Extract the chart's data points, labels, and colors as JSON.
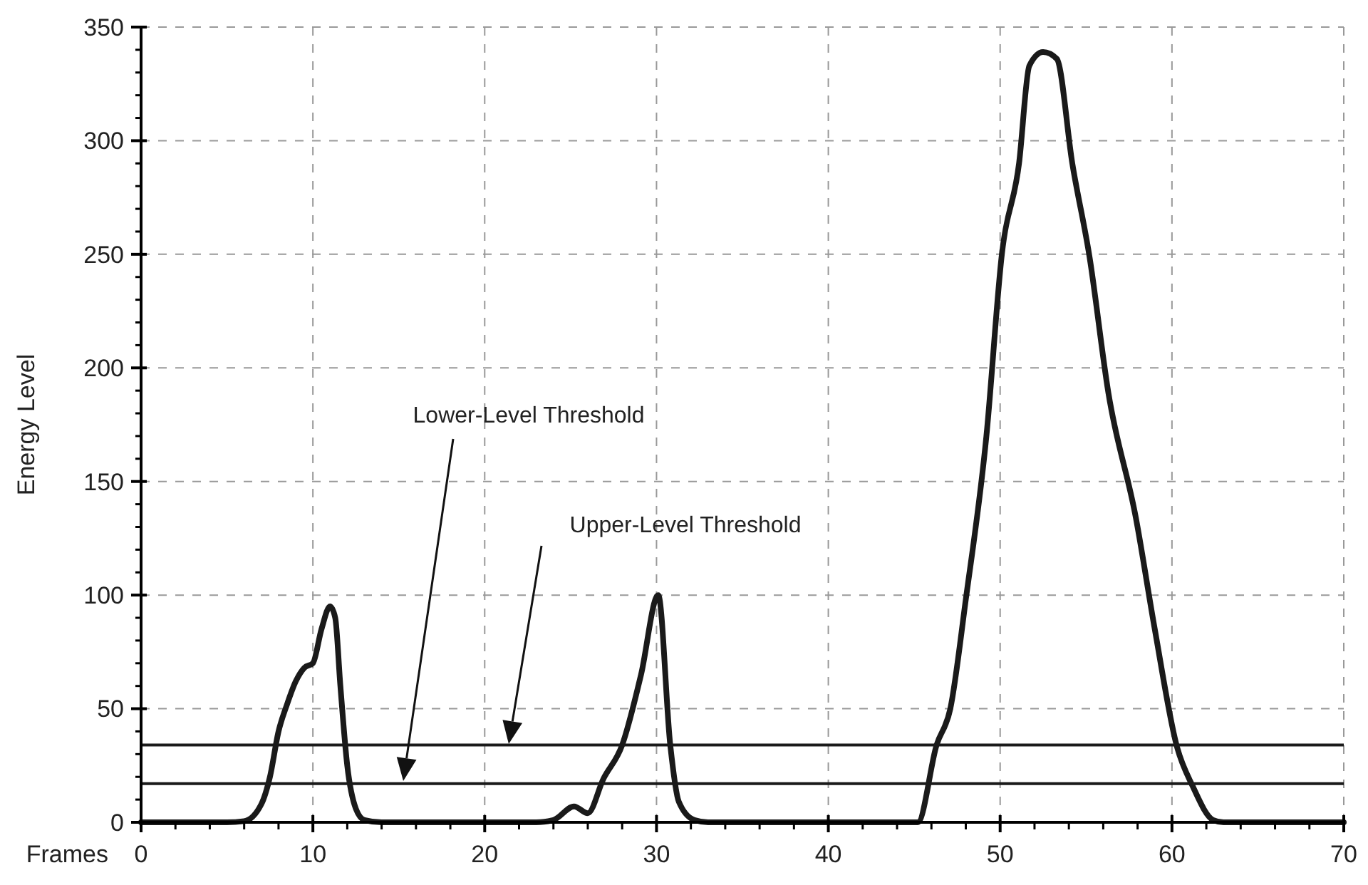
{
  "chart_data": {
    "type": "line",
    "xlabel": "Frames",
    "ylabel": "Energy Level",
    "x": [
      0,
      5,
      6,
      7,
      7.5,
      8,
      8.5,
      9,
      9.5,
      10,
      10.5,
      11,
      11.3,
      11.6,
      12,
      12.5,
      13,
      14,
      23,
      24,
      25.2,
      26,
      26.9,
      28,
      29.1,
      30.1,
      30.8,
      31.3,
      32.2,
      33,
      44,
      45.2,
      46.3,
      47.1,
      48,
      49.2,
      50.1,
      51.1,
      51.7,
      52.5,
      53.3,
      54.2,
      55.2,
      56.3,
      57.9,
      59,
      60.3,
      61.2,
      62.4,
      63,
      70
    ],
    "series": [
      {
        "color": "#1a1a1a",
        "values": [
          0,
          0,
          0.5,
          8,
          20,
          40,
          52,
          62,
          68,
          70,
          85,
          95,
          90,
          60,
          25,
          6,
          1,
          0,
          0,
          1,
          7,
          4,
          19,
          34,
          65,
          100,
          34,
          9,
          1,
          0,
          0,
          0,
          34,
          50,
          98,
          170,
          250,
          290,
          333,
          339,
          336,
          290,
          249,
          189,
          134,
          85,
          33,
          16,
          1,
          0,
          0
        ]
      }
    ],
    "xlim": [
      0,
      70
    ],
    "ylim": [
      0,
      350
    ],
    "xticks": [
      0,
      {
        "value": 2,
        "label": null
      },
      {
        "value": 4,
        "label": null
      },
      {
        "value": 6,
        "label": null
      },
      {
        "value": 8,
        "label": null
      },
      10,
      {
        "value": 12,
        "label": null
      },
      {
        "value": 14,
        "label": null
      },
      {
        "value": 16,
        "label": null
      },
      {
        "value": 18,
        "label": null
      },
      20,
      {
        "value": 22,
        "label": null
      },
      {
        "value": 24,
        "label": null
      },
      {
        "value": 26,
        "label": null
      },
      {
        "value": 28,
        "label": null
      },
      30,
      {
        "value": 32,
        "label": null
      },
      {
        "value": 34,
        "label": null
      },
      {
        "value": 36,
        "label": null
      },
      {
        "value": 38,
        "label": null
      },
      40,
      {
        "value": 42,
        "label": null
      },
      {
        "value": 44,
        "label": null
      },
      {
        "value": 46,
        "label": null
      },
      {
        "value": 48,
        "label": null
      },
      50,
      {
        "value": 52,
        "label": null
      },
      {
        "value": 54,
        "label": null
      },
      {
        "value": 56,
        "label": null
      },
      {
        "value": 58,
        "label": null
      },
      60,
      {
        "value": 62,
        "label": null
      },
      {
        "value": 64,
        "label": null
      },
      {
        "value": 66,
        "label": null
      },
      {
        "value": 68,
        "label": null
      },
      70
    ],
    "yticks": [
      0,
      {
        "value": 10,
        "label": null
      },
      {
        "value": 20,
        "label": null
      },
      {
        "value": 30,
        "label": null
      },
      {
        "value": 40,
        "label": null
      },
      50,
      {
        "value": 60,
        "label": null
      },
      {
        "value": 70,
        "label": null
      },
      {
        "value": 80,
        "label": null
      },
      {
        "value": 90,
        "label": null
      },
      100,
      {
        "value": 110,
        "label": null
      },
      {
        "value": 120,
        "label": null
      },
      {
        "value": 130,
        "label": null
      },
      {
        "value": 140,
        "label": null
      },
      150,
      {
        "value": 160,
        "label": null
      },
      {
        "value": 170,
        "label": null
      },
      {
        "value": 180,
        "label": null
      },
      {
        "value": 190,
        "label": null
      },
      200,
      {
        "value": 210,
        "label": null
      },
      {
        "value": 220,
        "label": null
      },
      {
        "value": 230,
        "label": null
      },
      {
        "value": 240,
        "label": null
      },
      250,
      {
        "value": 260,
        "label": null
      },
      {
        "value": 270,
        "label": null
      },
      {
        "value": 280,
        "label": null
      },
      {
        "value": 290,
        "label": null
      },
      300,
      {
        "value": 310,
        "label": null
      },
      {
        "value": 320,
        "label": null
      },
      {
        "value": 330,
        "label": null
      },
      {
        "value": 340,
        "label": null
      },
      350
    ],
    "grid": true,
    "marker": "none",
    "line_style": "solid",
    "ref_lines": [
      {
        "axis": "y",
        "value": 17,
        "color": "#1a1a1a"
      },
      {
        "axis": "y",
        "value": 34,
        "color": "#1a1a1a"
      }
    ],
    "annotations": [
      "Lower-Level Threshold",
      "Upper-Level Threshold"
    ]
  }
}
